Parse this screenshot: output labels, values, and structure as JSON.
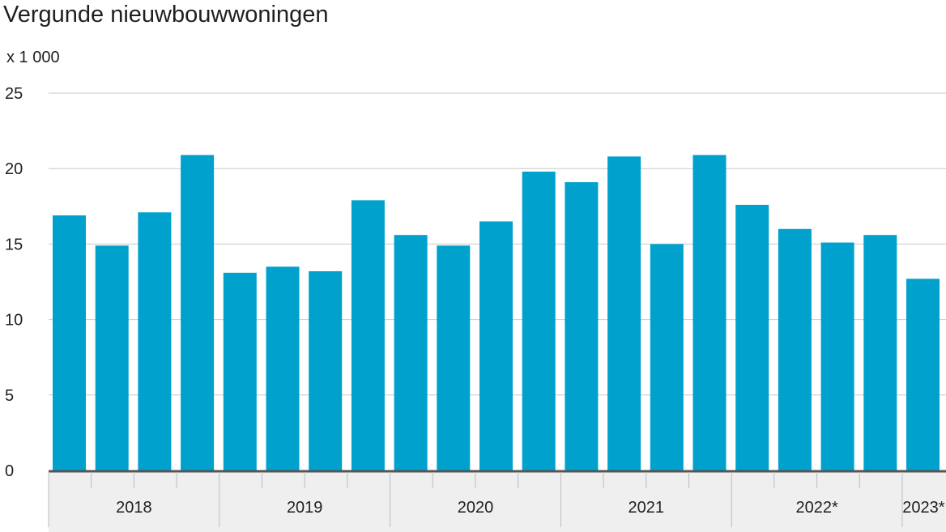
{
  "chart_data": {
    "type": "bar",
    "title": "Vergunde nieuwbouwwoningen",
    "unit_label": "x 1 000",
    "xlabel": "",
    "ylabel": "",
    "ylim": [
      0,
      25
    ],
    "yticks": [
      "0",
      "5",
      "10",
      "15",
      "20",
      "25"
    ],
    "grid": true,
    "legend": "none",
    "bar_color": "#00a1cd",
    "grid_color": "#c8c8c8",
    "axis_color": "#555555",
    "axis_band_color": "#efefef",
    "groups": [
      {
        "label": "2018",
        "quarters": 4
      },
      {
        "label": "2019",
        "quarters": 4
      },
      {
        "label": "2020",
        "quarters": 4
      },
      {
        "label": "2021",
        "quarters": 4
      },
      {
        "label": "2022*",
        "quarters": 4
      },
      {
        "label": "2023*",
        "quarters": 1
      }
    ],
    "values": [
      16.9,
      14.9,
      17.1,
      20.9,
      13.1,
      13.5,
      13.2,
      17.9,
      15.6,
      14.9,
      16.5,
      19.8,
      19.1,
      20.8,
      15.0,
      20.9,
      17.6,
      16.0,
      15.1,
      15.6,
      12.7
    ]
  }
}
